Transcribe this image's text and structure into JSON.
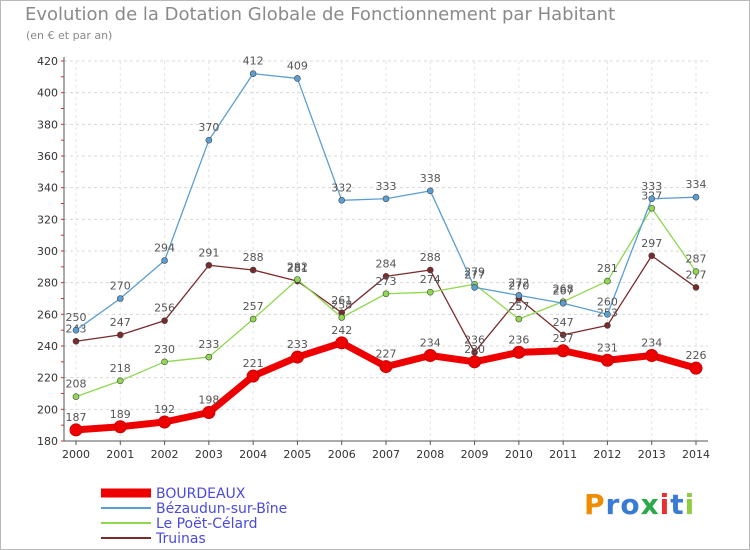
{
  "chart_data": {
    "type": "line",
    "title": "Evolution de la Dotation Globale de Fonctionnement par Habitant",
    "subtitle": "(en € et par an)",
    "xlabel": "",
    "ylabel": "",
    "x": [
      "2000",
      "2001",
      "2002",
      "2003",
      "2004",
      "2005",
      "2006",
      "2007",
      "2008",
      "2009",
      "2010",
      "2011",
      "2012",
      "2013",
      "2014"
    ],
    "ylim": [
      180,
      420
    ],
    "yticks": [
      180,
      200,
      220,
      240,
      260,
      280,
      300,
      320,
      340,
      360,
      380,
      400,
      420
    ],
    "series": [
      {
        "name": "BOURDEAUX",
        "color": "#ee0000",
        "values": [
          187,
          189,
          192,
          198,
          221,
          233,
          242,
          227,
          234,
          230,
          236,
          237,
          231,
          234,
          226
        ]
      },
      {
        "name": "Bézaudun-sur-Bîne",
        "color": "#5a9fd4",
        "values": [
          250,
          270,
          294,
          370,
          412,
          409,
          332,
          333,
          338,
          277,
          272,
          267,
          260,
          333,
          334
        ]
      },
      {
        "name": "Le Poët-Célard",
        "color": "#8fd84f",
        "values": [
          208,
          218,
          230,
          233,
          257,
          282,
          258,
          273,
          274,
          279,
          257,
          268,
          281,
          327,
          287
        ]
      },
      {
        "name": "Truinas",
        "color": "#7a2a2a",
        "values": [
          243,
          247,
          256,
          291,
          288,
          281,
          261,
          284,
          288,
          236,
          270,
          247,
          253,
          297,
          277
        ]
      }
    ],
    "legend_position": "bottom-left"
  },
  "logo": {
    "letters": [
      "P",
      "r",
      "o",
      "x",
      "i",
      "t",
      "i"
    ],
    "colors": [
      "#f08c00",
      "#3a7bd5",
      "#3a7bd5",
      "#2aa84a",
      "#e83030",
      "#3a7bd5",
      "#8fcc3f"
    ]
  }
}
